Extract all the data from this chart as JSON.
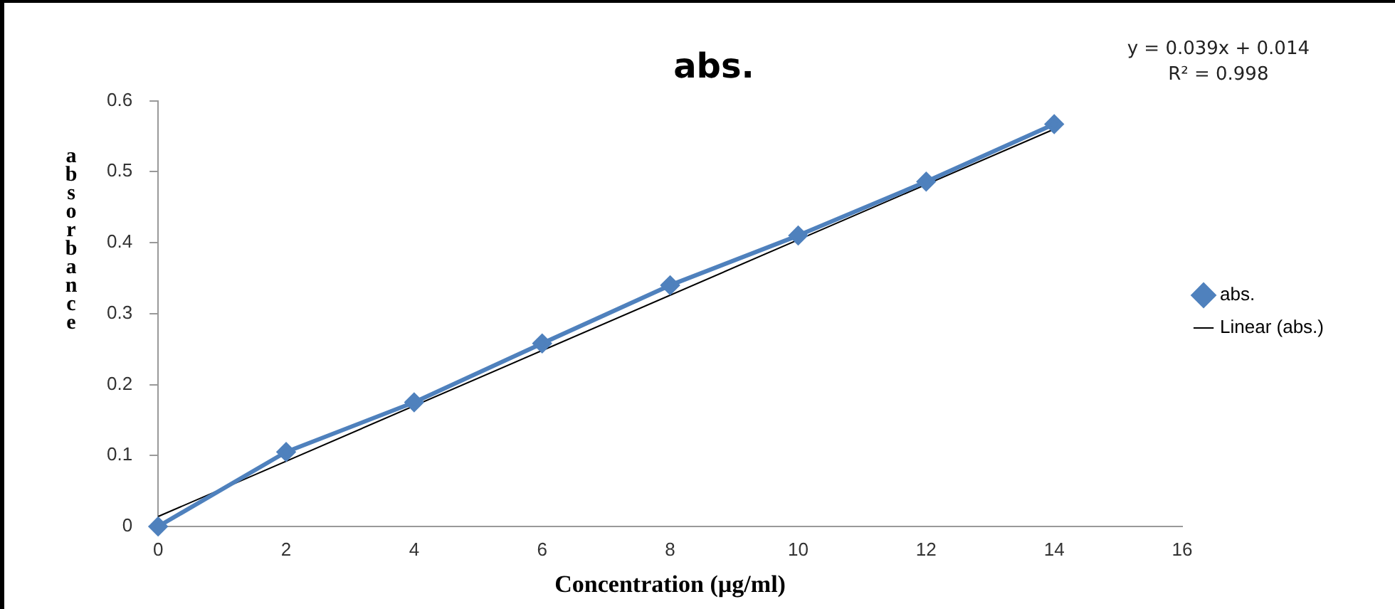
{
  "chart_data": {
    "type": "line",
    "title": "abs.",
    "xlabel": "Concentration (µg/ml)",
    "ylabel": "absorbance",
    "annotations": [
      "y = 0.039x + 0.014",
      "R² = 0.998"
    ],
    "xlim": [
      0,
      16
    ],
    "xticks": [
      0,
      2,
      4,
      6,
      8,
      10,
      12,
      14,
      16
    ],
    "ylim": [
      0,
      0.6
    ],
    "yticks": [
      0,
      0.1,
      0.2,
      0.3,
      0.4,
      0.5,
      0.6
    ],
    "grid": false,
    "legend": "right",
    "marker": "diamond",
    "series": [
      {
        "name": "abs.",
        "color": "#4f81bd",
        "x": [
          0,
          2,
          4,
          6,
          8,
          10,
          12,
          14
        ],
        "values": [
          0,
          0.105,
          0.175,
          0.258,
          0.34,
          0.41,
          0.486,
          0.567
        ]
      },
      {
        "name": "Linear (abs.)",
        "marker": "none",
        "color": "#000000",
        "x": [
          0,
          14
        ],
        "values": [
          0.014,
          0.56
        ]
      }
    ]
  }
}
